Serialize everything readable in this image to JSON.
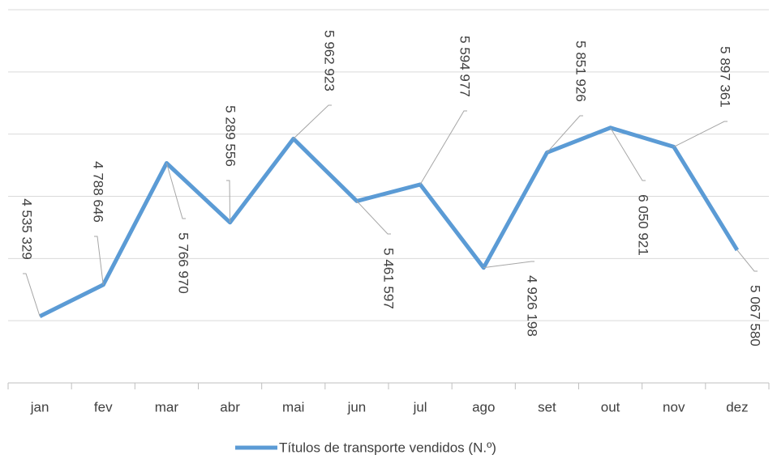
{
  "chart_data": {
    "type": "line",
    "categories": [
      "jan",
      "fev",
      "mar",
      "abr",
      "mai",
      "jun",
      "jul",
      "ago",
      "set",
      "out",
      "nov",
      "dez"
    ],
    "series": [
      {
        "name": "Títulos de transporte vendidos (N.º)",
        "color": "#5b9bd5",
        "values": [
          4535329,
          4788646,
          5766970,
          5289556,
          5962923,
          5461597,
          5594977,
          4926198,
          5851926,
          6050921,
          5897361,
          5067580
        ],
        "value_labels": [
          "4 535 329",
          "4 788 646",
          "5 766 970",
          "5 289 556",
          "5 962 923",
          "5 461 597",
          "5 594 977",
          "4 926 198",
          "5 851 926",
          "6 050 921",
          "5 897 361",
          "5 067 580"
        ]
      }
    ],
    "ylim": [
      4000000,
      7000000
    ],
    "yticks": [
      4000000,
      4500000,
      5000000,
      5500000,
      6000000,
      6500000,
      7000000
    ],
    "grid": true,
    "legend": "bottom"
  }
}
